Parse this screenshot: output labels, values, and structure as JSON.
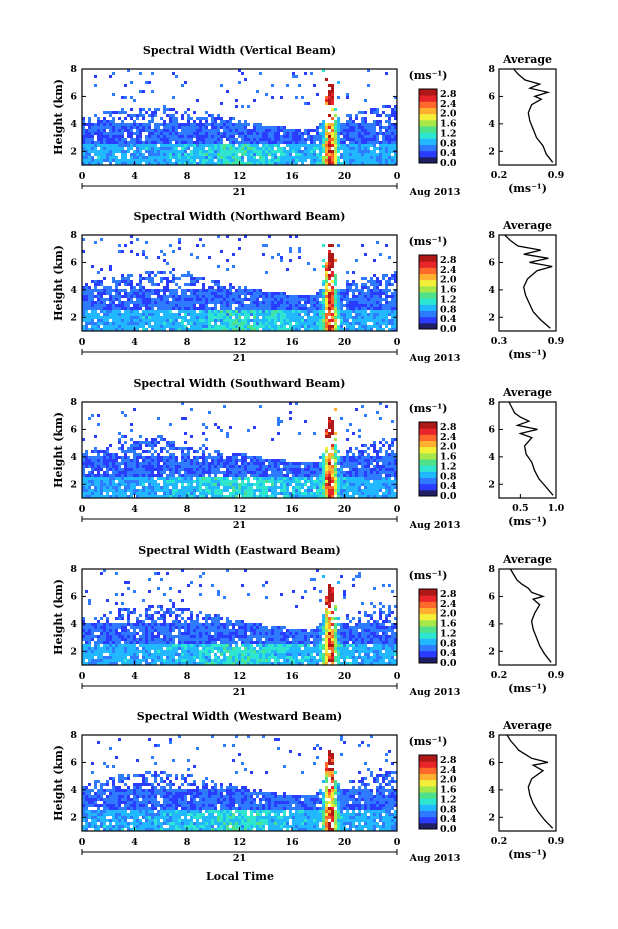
{
  "figure": {
    "xlabel": "Local Time",
    "date_label": "Aug 2013",
    "day_label": "21",
    "ylabel": "Height (km)",
    "units_label": "(ms⁻¹)",
    "avg_title": "Average",
    "avg_xlabel": "(ms⁻¹)"
  },
  "colors": {
    "colormap": [
      "#1e1e64",
      "#2a3cff",
      "#2f7bff",
      "#22b8ff",
      "#2ee6d0",
      "#4fe08a",
      "#a6e84a",
      "#f4f03a",
      "#ffb030",
      "#ff6a2a",
      "#e8262a",
      "#b01818"
    ],
    "background": "#ffffff"
  },
  "chart_data": [
    {
      "type": "heatmap",
      "title": "Spectral Width (Vertical Beam)",
      "x_ticks": [
        "0",
        "4",
        "8",
        "12",
        "16",
        "20",
        "0"
      ],
      "xlim": [
        0,
        24
      ],
      "y_ticks": [
        "2",
        "4",
        "6",
        "8"
      ],
      "ylim": [
        1,
        8
      ],
      "colorbar_ticks": [
        "0.0",
        "0.4",
        "0.8",
        "1.2",
        "1.6",
        "2.0",
        "2.4",
        "2.8"
      ],
      "colorbar_range": [
        0,
        3.0
      ],
      "profile": {
        "title": "Average",
        "xlim": [
          0.2,
          0.9
        ],
        "x_ticks": [
          "0.2",
          "0.9"
        ],
        "ylim": [
          1,
          8
        ],
        "y_ticks": [
          "2",
          "4",
          "6",
          "8"
        ],
        "height": [
          1.2,
          1.8,
          2.4,
          3.0,
          3.6,
          4.2,
          4.8,
          5.4,
          5.8,
          6.0,
          6.3,
          6.6,
          6.9,
          7.2,
          7.6,
          8.0
        ],
        "width": [
          0.86,
          0.78,
          0.74,
          0.66,
          0.62,
          0.58,
          0.56,
          0.6,
          0.72,
          0.64,
          0.8,
          0.58,
          0.7,
          0.52,
          0.44,
          0.38
        ]
      }
    },
    {
      "type": "heatmap",
      "title": "Spectral Width (Northward Beam)",
      "x_ticks": [
        "0",
        "4",
        "8",
        "12",
        "16",
        "20",
        "0"
      ],
      "xlim": [
        0,
        24
      ],
      "y_ticks": [
        "2",
        "4",
        "6",
        "8"
      ],
      "ylim": [
        1,
        8
      ],
      "colorbar_ticks": [
        "0.0",
        "0.4",
        "0.8",
        "1.2",
        "1.6",
        "2.0",
        "2.4",
        "2.8"
      ],
      "colorbar_range": [
        0,
        3.0
      ],
      "profile": {
        "title": "Average",
        "xlim": [
          0.3,
          0.9
        ],
        "x_ticks": [
          "0.3",
          "0.9"
        ],
        "ylim": [
          1,
          8
        ],
        "y_ticks": [
          "2",
          "4",
          "6",
          "8"
        ],
        "height": [
          1.2,
          1.8,
          2.4,
          3.0,
          3.6,
          4.2,
          4.8,
          5.4,
          5.7,
          6.0,
          6.3,
          6.6,
          6.9,
          7.2,
          7.6,
          8.0
        ],
        "width": [
          0.84,
          0.74,
          0.66,
          0.62,
          0.58,
          0.56,
          0.6,
          0.7,
          0.86,
          0.62,
          0.82,
          0.56,
          0.74,
          0.5,
          0.42,
          0.36
        ]
      }
    },
    {
      "type": "heatmap",
      "title": "Spectral Width (Southward Beam)",
      "x_ticks": [
        "0",
        "4",
        "8",
        "12",
        "16",
        "20",
        "0"
      ],
      "xlim": [
        0,
        24
      ],
      "y_ticks": [
        "2",
        "4",
        "6",
        "8"
      ],
      "ylim": [
        1,
        8
      ],
      "colorbar_ticks": [
        "0.0",
        "0.4",
        "0.8",
        "1.2",
        "1.6",
        "2.0",
        "2.4",
        "2.8"
      ],
      "colorbar_range": [
        0,
        3.0
      ],
      "profile": {
        "title": "Average",
        "xlim": [
          0.2,
          1.0
        ],
        "x_ticks": [
          "0.5",
          "1.0"
        ],
        "ylim": [
          1,
          8
        ],
        "y_ticks": [
          "2",
          "4",
          "6",
          "8"
        ],
        "height": [
          1.2,
          1.8,
          2.4,
          3.0,
          3.6,
          4.2,
          4.8,
          5.4,
          5.7,
          6.0,
          6.3,
          6.6,
          6.9,
          7.2,
          7.6,
          8.0
        ],
        "width": [
          0.96,
          0.86,
          0.76,
          0.7,
          0.66,
          0.58,
          0.56,
          0.66,
          0.5,
          0.74,
          0.46,
          0.62,
          0.5,
          0.42,
          0.38,
          0.34
        ]
      }
    },
    {
      "type": "heatmap",
      "title": "Spectral Width (Eastward Beam)",
      "x_ticks": [
        "0",
        "4",
        "8",
        "12",
        "16",
        "20",
        "0"
      ],
      "xlim": [
        0,
        24
      ],
      "y_ticks": [
        "2",
        "4",
        "6",
        "8"
      ],
      "ylim": [
        1,
        8
      ],
      "colorbar_ticks": [
        "0.0",
        "0.4",
        "0.8",
        "1.2",
        "1.6",
        "2.0",
        "2.4",
        "2.8"
      ],
      "colorbar_range": [
        0,
        3.0
      ],
      "profile": {
        "title": "Average",
        "xlim": [
          0.2,
          0.9
        ],
        "x_ticks": [
          "0.2",
          "0.9"
        ],
        "ylim": [
          1,
          8
        ],
        "y_ticks": [
          "2",
          "4",
          "6",
          "8"
        ],
        "height": [
          1.2,
          1.8,
          2.4,
          3.0,
          3.6,
          4.2,
          4.8,
          5.4,
          5.8,
          6.0,
          6.3,
          6.6,
          6.9,
          7.2,
          7.6,
          8.0
        ],
        "width": [
          0.84,
          0.76,
          0.7,
          0.66,
          0.62,
          0.6,
          0.64,
          0.7,
          0.62,
          0.74,
          0.6,
          0.56,
          0.48,
          0.42,
          0.38,
          0.34
        ]
      }
    },
    {
      "type": "heatmap",
      "title": "Spectral Width (Westward Beam)",
      "x_ticks": [
        "0",
        "4",
        "8",
        "12",
        "16",
        "20",
        "0"
      ],
      "xlim": [
        0,
        24
      ],
      "y_ticks": [
        "2",
        "4",
        "6",
        "8"
      ],
      "ylim": [
        1,
        8
      ],
      "colorbar_ticks": [
        "0.0",
        "0.4",
        "0.8",
        "1.2",
        "1.6",
        "2.0",
        "2.4",
        "2.8"
      ],
      "colorbar_range": [
        0,
        3.0
      ],
      "profile": {
        "title": "Average",
        "xlim": [
          0.2,
          0.9
        ],
        "x_ticks": [
          "0.2",
          "0.9"
        ],
        "ylim": [
          1,
          8
        ],
        "y_ticks": [
          "2",
          "4",
          "6",
          "8"
        ],
        "height": [
          1.2,
          1.8,
          2.4,
          3.0,
          3.6,
          4.2,
          4.8,
          5.4,
          5.8,
          6.0,
          6.3,
          6.6,
          6.9,
          7.2,
          7.6,
          8.0
        ],
        "width": [
          0.86,
          0.76,
          0.68,
          0.62,
          0.58,
          0.56,
          0.6,
          0.74,
          0.62,
          0.8,
          0.6,
          0.52,
          0.44,
          0.4,
          0.34,
          0.3
        ]
      }
    }
  ]
}
